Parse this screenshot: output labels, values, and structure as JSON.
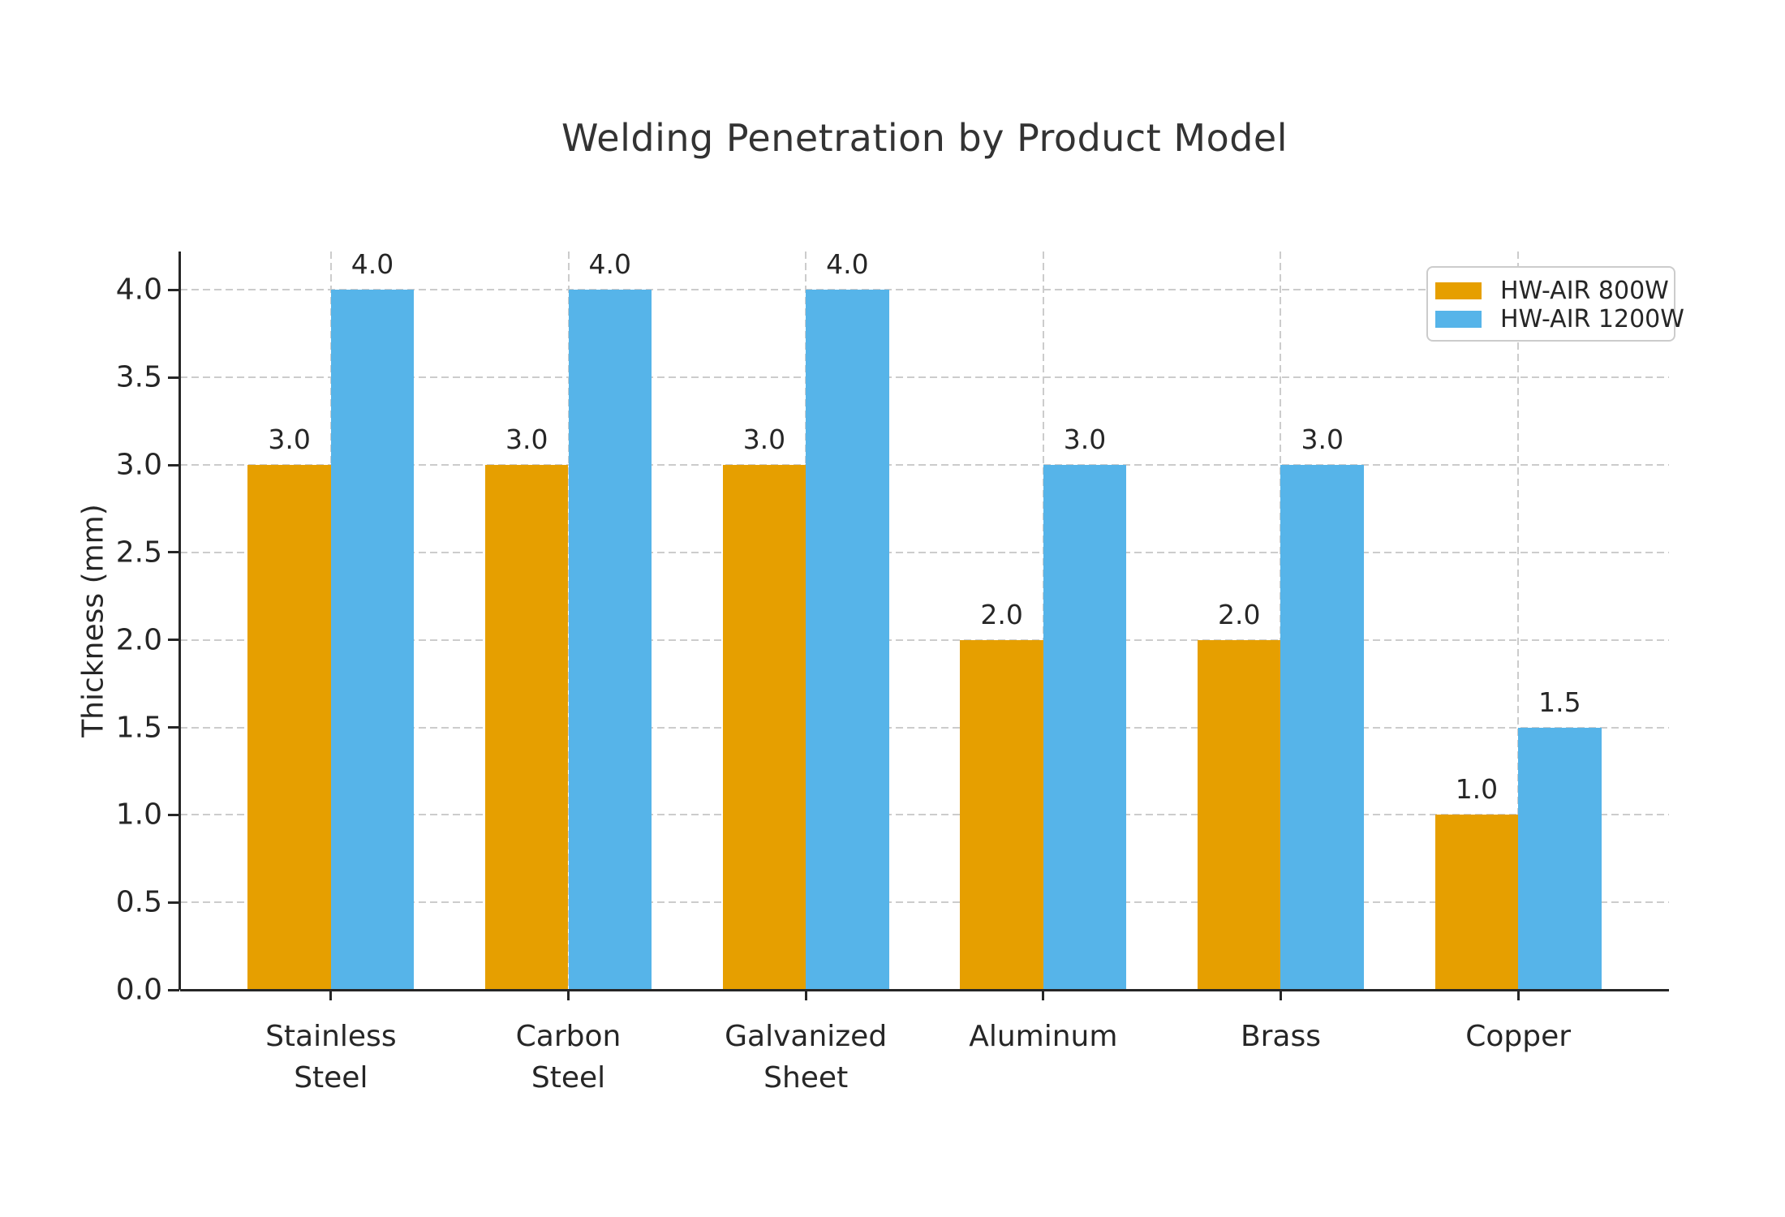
{
  "chart_data": {
    "type": "bar",
    "title": "Welding Penetration by Product Model",
    "xlabel": "",
    "ylabel": "Thickness (mm)",
    "categories": [
      "Stainless\nSteel",
      "Carbon\nSteel",
      "Galvanized\nSheet",
      "Aluminum",
      "Brass",
      "Copper"
    ],
    "series": [
      {
        "name": "HW-AIR 800W",
        "color": "#E69F00",
        "values": [
          3.0,
          3.0,
          3.0,
          2.0,
          2.0,
          1.0
        ]
      },
      {
        "name": "HW-AIR 1200W",
        "color": "#56B4E9",
        "values": [
          4.0,
          4.0,
          4.0,
          3.0,
          3.0,
          1.5
        ]
      }
    ],
    "bar_value_labels": [
      "3.0",
      "4.0",
      "3.0",
      "4.0",
      "3.0",
      "4.0",
      "2.0",
      "3.0",
      "2.0",
      "3.0",
      "1.0",
      "1.5"
    ],
    "yticks": [
      "0.0",
      "0.5",
      "1.0",
      "1.5",
      "2.0",
      "2.5",
      "3.0",
      "3.5",
      "4.0"
    ],
    "ylim": [
      0,
      4.22
    ],
    "grid": true,
    "grid_style": "dashed",
    "legend_position": "upper-right",
    "colors": {
      "grid": "#cccccc",
      "spine": "#262626",
      "text": "#262626",
      "title": "#333333",
      "background": "#ffffff"
    }
  }
}
